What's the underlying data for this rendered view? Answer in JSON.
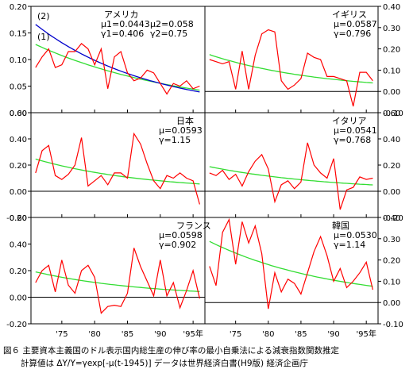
{
  "caption": {
    "line1": "図６ 主要資本主義国のドル表示国内総生産の伸び率の最小自乗法による減衰指数関数推定",
    "line2": "計算値は ΔY/Y=γexp[-μ(t-1945)] データは世界経済白書(H9版) 経済企画庁"
  },
  "colors": {
    "actual": "#ff0000",
    "fit": "#33dd33",
    "fit2": "#0000cc",
    "frame": "#000000"
  },
  "chart_data": [
    {
      "type": "line",
      "panel": "usa",
      "axis_side": "left",
      "title": "アメリカ",
      "params": [
        "μ1=0.0443",
        "μ2=0.058",
        "γ1=0.406",
        "γ2=0.75"
      ],
      "curve_labels": [
        "(2)",
        "(1)"
      ],
      "ylim": [
        0,
        0.2
      ],
      "yticks": [
        "0.20",
        "0.15",
        "0.10",
        "0.05",
        "0.00"
      ],
      "x": [
        1971,
        1972,
        1973,
        1974,
        1975,
        1976,
        1977,
        1978,
        1979,
        1980,
        1981,
        1982,
        1983,
        1984,
        1985,
        1986,
        1987,
        1988,
        1989,
        1990,
        1991,
        1992,
        1993,
        1994,
        1995,
        1996
      ],
      "series": [
        {
          "values": [
            0.085,
            0.105,
            0.12,
            0.085,
            0.09,
            0.115,
            0.115,
            0.13,
            0.12,
            0.09,
            0.12,
            0.045,
            0.105,
            0.115,
            0.075,
            0.06,
            0.065,
            0.08,
            0.075,
            0.055,
            0.035,
            0.055,
            0.05,
            0.06,
            0.045,
            0.05
          ]
        },
        {
          "fit": {
            "gamma": 0.406,
            "mu": 0.0443
          }
        },
        {
          "fit": {
            "gamma": 0.75,
            "mu": 0.058
          }
        }
      ]
    },
    {
      "type": "line",
      "panel": "uk",
      "axis_side": "right",
      "title": "イギリス",
      "params": [
        "μ=0.0587",
        "γ=0.796"
      ],
      "ylim": [
        -0.1,
        0.4
      ],
      "yticks": [
        "0.40",
        "0.30",
        "0.20",
        "0.10",
        "0.00",
        "-0.10"
      ],
      "x": [
        1971,
        1972,
        1973,
        1974,
        1975,
        1976,
        1977,
        1978,
        1979,
        1980,
        1981,
        1982,
        1983,
        1984,
        1985,
        1986,
        1987,
        1988,
        1989,
        1990,
        1991,
        1992,
        1993,
        1994,
        1995,
        1996
      ],
      "series": [
        {
          "values": [
            0.15,
            0.14,
            0.13,
            0.14,
            0.01,
            0.19,
            0.01,
            0.17,
            0.27,
            0.29,
            0.28,
            0.05,
            0.01,
            0.03,
            0.06,
            0.18,
            0.16,
            0.15,
            0.07,
            0.07,
            0.06,
            0.05,
            -0.07,
            0.09,
            0.09,
            0.05
          ]
        },
        {
          "fit": {
            "gamma": 0.796,
            "mu": 0.0587
          }
        }
      ]
    },
    {
      "type": "line",
      "panel": "japan",
      "axis_side": "left",
      "title": "日本",
      "params": [
        "μ=0.0593",
        "γ=1.15"
      ],
      "ylim": [
        -0.2,
        0.6
      ],
      "yticks": [
        "0.60",
        "0.40",
        "0.20",
        "0.00",
        "-0.20"
      ],
      "x": [
        1971,
        1972,
        1973,
        1974,
        1975,
        1976,
        1977,
        1978,
        1979,
        1980,
        1981,
        1982,
        1983,
        1984,
        1985,
        1986,
        1987,
        1988,
        1989,
        1990,
        1991,
        1992,
        1993,
        1994,
        1995,
        1996
      ],
      "series": [
        {
          "values": [
            0.14,
            0.31,
            0.35,
            0.12,
            0.09,
            0.13,
            0.2,
            0.41,
            0.04,
            0.08,
            0.12,
            0.05,
            0.14,
            0.14,
            0.1,
            0.44,
            0.36,
            0.21,
            0.08,
            0.02,
            0.12,
            0.1,
            0.14,
            0.1,
            0.08,
            -0.1
          ]
        },
        {
          "fit": {
            "gamma": 1.15,
            "mu": 0.0593
          }
        }
      ]
    },
    {
      "type": "line",
      "panel": "italy",
      "axis_side": "right",
      "title": "イタリア",
      "params": [
        "μ=0.0541",
        "γ=0.768"
      ],
      "ylim": [
        -0.2,
        0.6
      ],
      "yticks": [
        "0.60",
        "0.40",
        "0.20",
        "0.00",
        "-0.20"
      ],
      "x": [
        1971,
        1972,
        1973,
        1974,
        1975,
        1976,
        1977,
        1978,
        1979,
        1980,
        1981,
        1982,
        1983,
        1984,
        1985,
        1986,
        1987,
        1988,
        1989,
        1990,
        1991,
        1992,
        1993,
        1994,
        1995,
        1996
      ],
      "series": [
        {
          "values": [
            0.14,
            0.12,
            0.16,
            0.09,
            0.13,
            0.04,
            0.15,
            0.23,
            0.28,
            0.17,
            -0.08,
            0.05,
            0.08,
            0.02,
            0.07,
            0.37,
            0.2,
            0.14,
            0.1,
            0.25,
            -0.14,
            0.01,
            0.03,
            0.11,
            0.09,
            0.1
          ]
        },
        {
          "fit": {
            "gamma": 0.768,
            "mu": 0.0541
          }
        }
      ]
    },
    {
      "type": "line",
      "panel": "france",
      "axis_side": "left",
      "title": "フランス",
      "params": [
        "μ=0.0598",
        "γ=0.902"
      ],
      "ylim": [
        -0.2,
        0.6
      ],
      "yticks": [
        "0.60",
        "0.40",
        "0.20",
        "0.00",
        "-0.20"
      ],
      "x": [
        1971,
        1972,
        1973,
        1974,
        1975,
        1976,
        1977,
        1978,
        1979,
        1980,
        1981,
        1982,
        1983,
        1984,
        1985,
        1986,
        1987,
        1988,
        1989,
        1990,
        1991,
        1992,
        1993,
        1994,
        1995,
        1996
      ],
      "series": [
        {
          "values": [
            0.11,
            0.2,
            0.24,
            0.04,
            0.28,
            0.09,
            0.03,
            0.2,
            0.24,
            0.15,
            -0.12,
            -0.07,
            -0.06,
            -0.07,
            0.03,
            0.37,
            0.23,
            0.12,
            0.01,
            0.28,
            0.01,
            0.11,
            -0.08,
            0.05,
            0.2,
            -0.01
          ]
        },
        {
          "fit": {
            "gamma": 0.902,
            "mu": 0.0598
          }
        }
      ]
    },
    {
      "type": "line",
      "panel": "korea",
      "axis_side": "right",
      "title": "韓国",
      "params": [
        "μ=0.0530",
        "γ=1.14"
      ],
      "ylim": [
        -0.1,
        0.4
      ],
      "yticks": [
        "0.40",
        "0.30",
        "0.20",
        "0.10",
        "0.00",
        "-0.10"
      ],
      "x": [
        1971,
        1972,
        1973,
        1974,
        1975,
        1976,
        1977,
        1978,
        1979,
        1980,
        1981,
        1982,
        1983,
        1984,
        1985,
        1986,
        1987,
        1988,
        1989,
        1990,
        1991,
        1992,
        1993,
        1994,
        1995,
        1996
      ],
      "series": [
        {
          "values": [
            0.17,
            0.08,
            0.33,
            0.39,
            0.18,
            0.38,
            0.28,
            0.36,
            0.23,
            -0.03,
            0.14,
            0.05,
            0.11,
            0.09,
            0.04,
            0.14,
            0.24,
            0.31,
            0.22,
            0.1,
            0.16,
            0.07,
            0.1,
            0.14,
            0.19,
            0.06
          ]
        },
        {
          "fit": {
            "gamma": 1.14,
            "mu": 0.053
          }
        }
      ]
    }
  ],
  "x_axis": {
    "ticks": [
      1975,
      1980,
      1985,
      1990,
      1995
    ],
    "labels": [
      "'75",
      "'80",
      "'85",
      "'90",
      "'95年"
    ]
  }
}
